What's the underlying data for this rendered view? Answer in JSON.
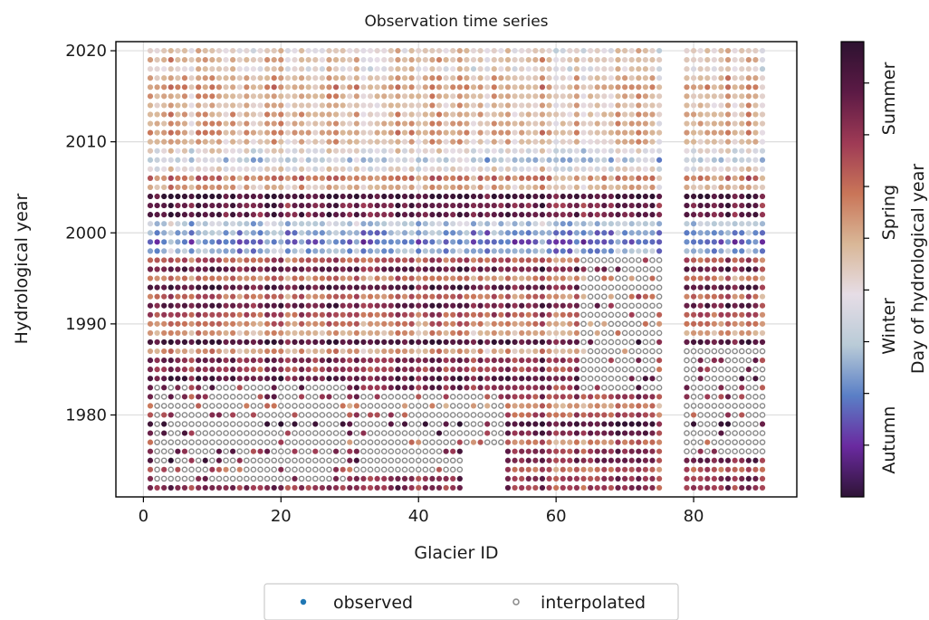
{
  "chart_data": {
    "type": "scatter",
    "title": "Observation time series",
    "xlabel": "Glacier ID",
    "ylabel": "Hydrological year",
    "xlim": [
      -4,
      95
    ],
    "ylim": [
      1971,
      2021
    ],
    "xticks": [
      0,
      20,
      40,
      60,
      80
    ],
    "yticks": [
      1980,
      1990,
      2000,
      2010,
      2020
    ],
    "x_ids": {
      "start": 1,
      "end": 90,
      "missing": [
        76,
        77,
        78
      ]
    },
    "years": {
      "start": 1972,
      "end": 2020
    },
    "grid": true,
    "legend": {
      "placement": "bottom-center",
      "entries": [
        "observed",
        "interpolated"
      ]
    },
    "colorbar": {
      "label": "Day of hydrological year",
      "season_labels": [
        "Autumn",
        "Winter",
        "Spring",
        "Summer"
      ],
      "colormap": "twilight_shifted",
      "stops": [
        "#2f1436",
        "#6a2aa0",
        "#5a7fc6",
        "#b9cbd7",
        "#e6dde6",
        "#d9b797",
        "#c97558",
        "#9e3a55",
        "#5c1a45",
        "#2d1230"
      ]
    },
    "marker_colors": {
      "interpolated": "#888888",
      "observed_legend": "#1f77b4"
    },
    "interpolated_regions_note_free": [
      {
        "x": [
          2,
          29
        ],
        "y": [
          1973,
          1983
        ]
      },
      {
        "x": [
          31,
          52
        ],
        "y": [
          1974,
          1982
        ]
      },
      {
        "x": [
          64,
          75
        ],
        "y": [
          1983,
          1997
        ]
      },
      {
        "x": [
          79,
          90
        ],
        "y": [
          1976,
          1987
        ]
      }
    ]
  }
}
